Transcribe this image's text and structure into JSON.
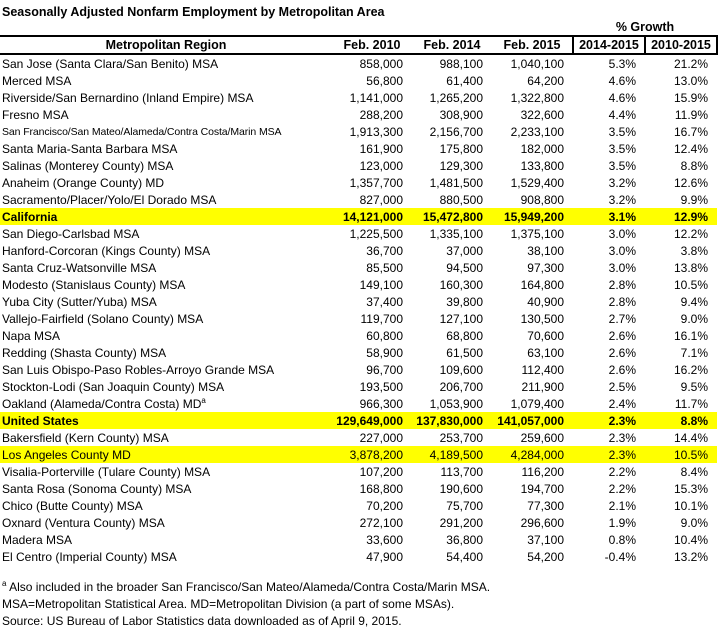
{
  "title": "Seasonally Adjusted Nonfarm Employment by Metropolitan Area",
  "growth_label": "% Growth",
  "chart_data": {
    "type": "table",
    "columns": [
      "Metropolitan Region",
      "Feb. 2010",
      "Feb. 2014",
      "Feb. 2015",
      "2014-2015",
      "2010-2015"
    ],
    "rows": [
      {
        "region": "San Jose (Santa Clara/San Benito) MSA",
        "values": [
          "858,000",
          "988,100",
          "1,040,100",
          "5.3%",
          "21.2%"
        ]
      },
      {
        "region": "Merced MSA",
        "values": [
          "56,800",
          "61,400",
          "64,200",
          "4.6%",
          "13.0%"
        ]
      },
      {
        "region": "Riverside/San Bernardino (Inland Empire) MSA",
        "values": [
          "1,141,000",
          "1,265,200",
          "1,322,800",
          "4.6%",
          "15.9%"
        ]
      },
      {
        "region": "Fresno MSA",
        "values": [
          "288,200",
          "308,900",
          "322,600",
          "4.4%",
          "11.9%"
        ]
      },
      {
        "region": "San Francisco/San Mateo/Alameda/Contra Costa/Marin MSA",
        "shrink": true,
        "values": [
          "1,913,300",
          "2,156,700",
          "2,233,100",
          "3.5%",
          "16.7%"
        ]
      },
      {
        "region": "Santa Maria-Santa Barbara MSA",
        "values": [
          "161,900",
          "175,800",
          "182,000",
          "3.5%",
          "12.4%"
        ]
      },
      {
        "region": "Salinas (Monterey County) MSA",
        "values": [
          "123,000",
          "129,300",
          "133,800",
          "3.5%",
          "8.8%"
        ]
      },
      {
        "region": "Anaheim (Orange County) MD",
        "values": [
          "1,357,700",
          "1,481,500",
          "1,529,400",
          "3.2%",
          "12.6%"
        ]
      },
      {
        "region": "Sacramento/Placer/Yolo/El Dorado MSA",
        "values": [
          "827,000",
          "880,500",
          "908,800",
          "3.2%",
          "9.9%"
        ]
      },
      {
        "region": "California",
        "style": "highlight-bold",
        "values": [
          "14,121,000",
          "15,472,800",
          "15,949,200",
          "3.1%",
          "12.9%"
        ]
      },
      {
        "region": "San Diego-Carlsbad MSA",
        "values": [
          "1,225,500",
          "1,335,100",
          "1,375,100",
          "3.0%",
          "12.2%"
        ]
      },
      {
        "region": "Hanford-Corcoran (Kings County) MSA",
        "values": [
          "36,700",
          "37,000",
          "38,100",
          "3.0%",
          "3.8%"
        ]
      },
      {
        "region": "Santa Cruz-Watsonville MSA",
        "values": [
          "85,500",
          "94,500",
          "97,300",
          "3.0%",
          "13.8%"
        ]
      },
      {
        "region": "Modesto (Stanislaus County) MSA",
        "values": [
          "149,100",
          "160,300",
          "164,800",
          "2.8%",
          "10.5%"
        ]
      },
      {
        "region": "Yuba City (Sutter/Yuba) MSA",
        "values": [
          "37,400",
          "39,800",
          "40,900",
          "2.8%",
          "9.4%"
        ]
      },
      {
        "region": "Vallejo-Fairfield (Solano County) MSA",
        "values": [
          "119,700",
          "127,100",
          "130,500",
          "2.7%",
          "9.0%"
        ]
      },
      {
        "region": "Napa MSA",
        "values": [
          "60,800",
          "68,800",
          "70,600",
          "2.6%",
          "16.1%"
        ]
      },
      {
        "region": "Redding (Shasta County) MSA",
        "values": [
          "58,900",
          "61,500",
          "63,100",
          "2.6%",
          "7.1%"
        ]
      },
      {
        "region": "San Luis Obispo-Paso Robles-Arroyo Grande MSA",
        "values": [
          "96,700",
          "109,600",
          "112,400",
          "2.6%",
          "16.2%"
        ]
      },
      {
        "region": "Stockton-Lodi (San Joaquin County) MSA",
        "values": [
          "193,500",
          "206,700",
          "211,900",
          "2.5%",
          "9.5%"
        ]
      },
      {
        "region": "Oakland (Alameda/Contra Costa) MD",
        "sup": "a",
        "values": [
          "966,300",
          "1,053,900",
          "1,079,400",
          "2.4%",
          "11.7%"
        ]
      },
      {
        "region": "United States",
        "style": "highlight-bold",
        "values": [
          "129,649,000",
          "137,830,000",
          "141,057,000",
          "2.3%",
          "8.8%"
        ]
      },
      {
        "region": "Bakersfield (Kern County) MSA",
        "values": [
          "227,000",
          "253,700",
          "259,600",
          "2.3%",
          "14.4%"
        ]
      },
      {
        "region": "Los Angeles County MD",
        "style": "highlight",
        "values": [
          "3,878,200",
          "4,189,500",
          "4,284,000",
          "2.3%",
          "10.5%"
        ]
      },
      {
        "region": "Visalia-Porterville (Tulare County) MSA",
        "values": [
          "107,200",
          "113,700",
          "116,200",
          "2.2%",
          "8.4%"
        ]
      },
      {
        "region": "Santa Rosa (Sonoma County) MSA",
        "values": [
          "168,800",
          "190,600",
          "194,700",
          "2.2%",
          "15.3%"
        ]
      },
      {
        "region": "Chico (Butte County) MSA",
        "values": [
          "70,200",
          "75,700",
          "77,300",
          "2.1%",
          "10.1%"
        ]
      },
      {
        "region": "Oxnard (Ventura County) MSA",
        "values": [
          "272,100",
          "291,200",
          "296,600",
          "1.9%",
          "9.0%"
        ]
      },
      {
        "region": "Madera MSA",
        "values": [
          "33,600",
          "36,800",
          "37,100",
          "0.8%",
          "10.4%"
        ]
      },
      {
        "region": "El Centro (Imperial County) MSA",
        "values": [
          "47,900",
          "54,400",
          "54,200",
          "-0.4%",
          "13.2%"
        ]
      }
    ],
    "highlight_color": "#FFFF00"
  },
  "footnotes": {
    "marker": "a",
    "note_a": "Also included in the broader San Francisco/San Mateo/Alameda/Contra Costa/Marin MSA.",
    "abbreviations": "MSA=Metropolitan Statistical Area. MD=Metropolitan Division (a part of some MSAs).",
    "source": "Source: US Bureau of Labor Statistics data downloaded as of April 9, 2015."
  }
}
